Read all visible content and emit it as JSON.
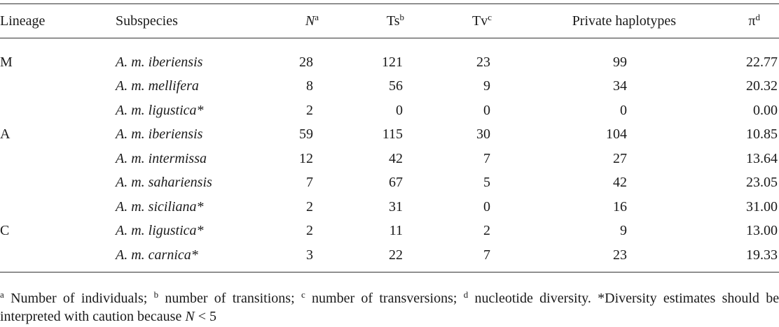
{
  "table": {
    "header": [
      {
        "text": "Lineage"
      },
      {
        "text": "Subspecies"
      },
      {
        "text": "N",
        "sup": "a"
      },
      {
        "text": "Ts",
        "sup": "b"
      },
      {
        "text": "Tv",
        "sup": "c"
      },
      {
        "text": "Private haplotypes"
      },
      {
        "text": "π",
        "sup": "d"
      }
    ],
    "groups": [
      {
        "lineage": "M",
        "rows": [
          [
            "A. m. iberiensis",
            "28",
            "121",
            "23",
            "99",
            "22.77"
          ],
          [
            "A. m. mellifera",
            "8",
            "56",
            "9",
            "34",
            "20.32"
          ],
          [
            "A. m. ligustica*",
            "2",
            "0",
            "0",
            "0",
            "0.00"
          ]
        ]
      },
      {
        "lineage": "A",
        "rows": [
          [
            "A. m. iberiensis",
            "59",
            "115",
            "30",
            "104",
            "10.85"
          ],
          [
            "A. m. intermissa",
            "12",
            "42",
            "7",
            "27",
            "13.64"
          ],
          [
            "A. m. sahariensis",
            "7",
            "67",
            "5",
            "42",
            "23.05"
          ],
          [
            "A. m. siciliana*",
            "2",
            "31",
            "0",
            "16",
            "31.00"
          ]
        ]
      },
      {
        "lineage": "C",
        "rows": [
          [
            "A. m. ligustica*",
            "2",
            "11",
            "2",
            "9",
            "13.00"
          ],
          [
            "A. m. carnica*",
            "3",
            "22",
            "7",
            "23",
            "19.33"
          ]
        ]
      }
    ]
  },
  "footnote": {
    "notes": [
      {
        "sup": "a",
        "text": "Number of individuals;"
      },
      {
        "sup": "b",
        "text": "number of transitions;"
      },
      {
        "sup": "c",
        "text": "number of transversions;"
      },
      {
        "sup": "d",
        "text": "nucleotide diversity."
      }
    ],
    "caution": "*Diversity estimates should be interpreted with caution because",
    "symbol": "N",
    "condition": "< 5"
  }
}
